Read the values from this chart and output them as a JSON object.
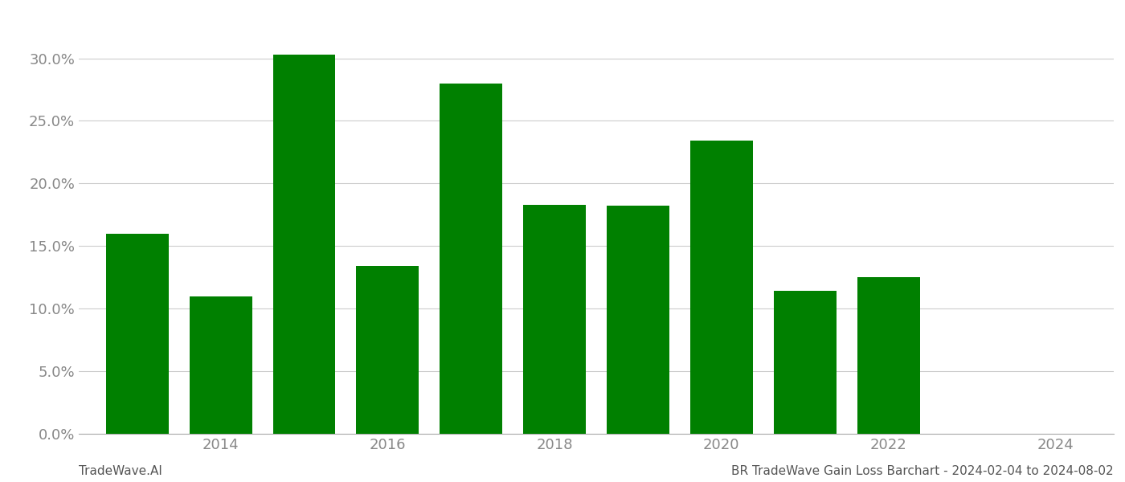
{
  "years": [
    2013,
    2014,
    2015,
    2016,
    2017,
    2018,
    2019,
    2020,
    2021,
    2022
  ],
  "values": [
    0.16,
    0.11,
    0.303,
    0.134,
    0.28,
    0.183,
    0.182,
    0.234,
    0.114,
    0.125
  ],
  "bar_color": "#008000",
  "background_color": "#ffffff",
  "grid_color": "#cccccc",
  "xlim": [
    2012.3,
    2024.7
  ],
  "ylim": [
    0,
    0.335
  ],
  "xticks": [
    2014,
    2016,
    2018,
    2020,
    2022,
    2024
  ],
  "yticks": [
    0.0,
    0.05,
    0.1,
    0.15,
    0.2,
    0.25,
    0.3
  ],
  "bar_width": 0.75,
  "footer_left": "TradeWave.AI",
  "footer_right": "BR TradeWave Gain Loss Barchart - 2024-02-04 to 2024-08-02",
  "footer_fontsize": 11,
  "tick_fontsize": 13,
  "spine_color": "#aaaaaa"
}
